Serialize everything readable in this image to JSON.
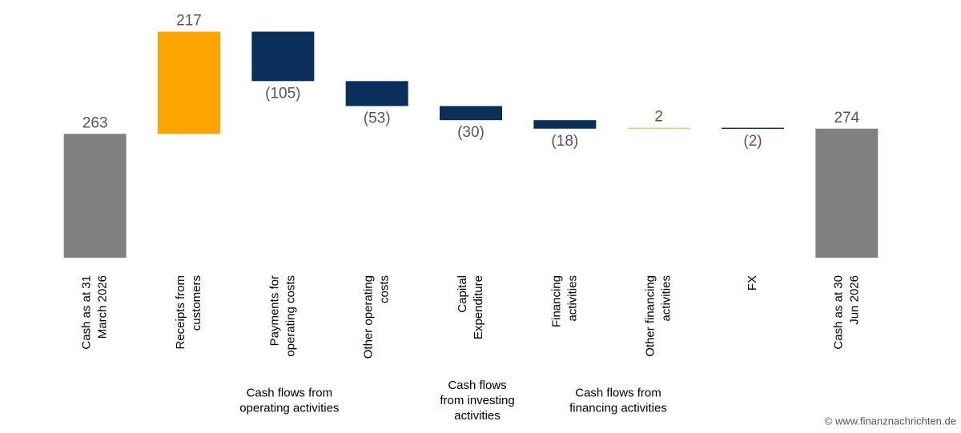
{
  "chart_data": {
    "type": "waterfall",
    "categories": [
      [
        "Cash as at 31",
        "March 2026"
      ],
      [
        "Receipts from",
        "customers"
      ],
      [
        "Payments for",
        "operating costs"
      ],
      [
        "Other operating",
        "costs"
      ],
      [
        "Capital",
        "Expenditure"
      ],
      [
        "Financing",
        "activities"
      ],
      [
        "Other financing",
        "activities"
      ],
      [
        "FX"
      ],
      [
        "Cash as at 30",
        "Jun 2026"
      ]
    ],
    "values": [
      263,
      217,
      -105,
      -53,
      -30,
      -18,
      2,
      -2,
      274
    ],
    "value_labels": [
      "263",
      "217",
      "(105)",
      "(53)",
      "(30)",
      "(18)",
      "2",
      "(2)",
      "274"
    ],
    "bar_kinds": [
      "total",
      "delta",
      "delta",
      "delta",
      "delta",
      "delta",
      "delta",
      "delta",
      "total"
    ],
    "colors": [
      "#808080",
      "#ffa500",
      "#0b2f5b",
      "#0b2f5b",
      "#0b2f5b",
      "#0b2f5b",
      "#f5c46a",
      "#0b2f5b",
      "#808080"
    ],
    "ylim": [
      0,
      520
    ],
    "groups": [
      {
        "label": [
          "Cash flows from",
          "operating activities"
        ],
        "range": [
          1,
          3
        ]
      },
      {
        "label": [
          "Cash flows",
          "from investing",
          "activities"
        ],
        "range": [
          4,
          4
        ]
      },
      {
        "label": [
          "Cash flows from",
          "financing activities"
        ],
        "range": [
          5,
          6
        ]
      }
    ],
    "watermark": "© www.finanznachrichten.de"
  }
}
